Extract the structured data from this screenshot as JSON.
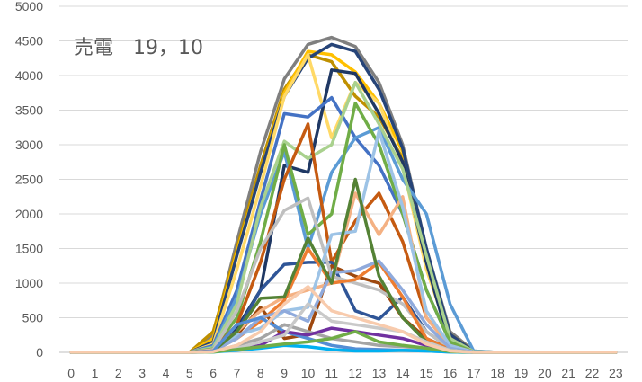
{
  "chart_data": {
    "type": "line",
    "title": "売電　19，10",
    "xlabel": "",
    "ylabel": "",
    "x": [
      0,
      1,
      2,
      3,
      4,
      5,
      6,
      7,
      8,
      9,
      10,
      11,
      12,
      13,
      14,
      15,
      16,
      17,
      18,
      19,
      20,
      21,
      22,
      23
    ],
    "ylim": [
      0,
      5000
    ],
    "yticks": [
      0,
      500,
      1000,
      1500,
      2000,
      2500,
      3000,
      3500,
      4000,
      4500,
      5000
    ],
    "grid": "horizontal",
    "legend": "none",
    "series": [
      {
        "color": "#7f7f7f",
        "values": [
          0,
          0,
          0,
          0,
          0,
          0,
          250,
          1600,
          2900,
          3950,
          4450,
          4550,
          4420,
          3900,
          3000,
          1500,
          300,
          20,
          0,
          0,
          0,
          0,
          0,
          0
        ]
      },
      {
        "color": "#bf9000",
        "values": [
          0,
          0,
          0,
          0,
          0,
          0,
          300,
          1500,
          2700,
          3800,
          4300,
          4200,
          3700,
          3400,
          2800,
          1400,
          260,
          15,
          0,
          0,
          0,
          0,
          0,
          0
        ]
      },
      {
        "color": "#ffc000",
        "values": [
          0,
          0,
          0,
          0,
          0,
          0,
          200,
          1450,
          2600,
          3750,
          4350,
          4300,
          4050,
          3600,
          2900,
          1450,
          250,
          10,
          0,
          0,
          0,
          0,
          0,
          0
        ]
      },
      {
        "color": "#264478",
        "values": [
          0,
          0,
          0,
          0,
          0,
          0,
          150,
          1400,
          2600,
          3700,
          4250,
          4450,
          4350,
          3800,
          2950,
          1500,
          260,
          10,
          0,
          0,
          0,
          0,
          0,
          0
        ]
      },
      {
        "color": "#ffd966",
        "values": [
          0,
          0,
          0,
          0,
          0,
          0,
          120,
          1200,
          2400,
          3700,
          4300,
          3100,
          3900,
          3600,
          2700,
          1200,
          200,
          10,
          0,
          0,
          0,
          0,
          0,
          0
        ]
      },
      {
        "color": "#1f3864",
        "values": [
          0,
          0,
          0,
          0,
          0,
          0,
          60,
          350,
          900,
          2700,
          2600,
          4080,
          4030,
          3450,
          2750,
          1300,
          100,
          5,
          0,
          0,
          0,
          0,
          0,
          0
        ]
      },
      {
        "color": "#4472c4",
        "values": [
          0,
          0,
          0,
          0,
          0,
          0,
          100,
          900,
          2200,
          3450,
          3400,
          3680,
          3100,
          2700,
          2000,
          900,
          150,
          5,
          0,
          0,
          0,
          0,
          0,
          0
        ]
      },
      {
        "color": "#5b9bd5",
        "values": [
          0,
          0,
          0,
          0,
          0,
          0,
          80,
          800,
          2000,
          2900,
          1500,
          2600,
          3100,
          3250,
          2500,
          2000,
          700,
          20,
          0,
          0,
          0,
          0,
          0,
          0
        ]
      },
      {
        "color": "#a9d18e",
        "values": [
          0,
          0,
          0,
          0,
          0,
          0,
          70,
          700,
          2100,
          3050,
          2800,
          3000,
          3900,
          3300,
          2650,
          1400,
          200,
          10,
          0,
          0,
          0,
          0,
          0,
          0
        ]
      },
      {
        "color": "#70ad47",
        "values": [
          0,
          0,
          0,
          0,
          0,
          0,
          50,
          500,
          1600,
          3000,
          1700,
          2000,
          3600,
          3000,
          2000,
          900,
          150,
          5,
          0,
          0,
          0,
          0,
          0,
          0
        ]
      },
      {
        "color": "#c55a11",
        "values": [
          0,
          0,
          0,
          0,
          0,
          0,
          40,
          400,
          1300,
          2500,
          3300,
          1300,
          1900,
          2300,
          1600,
          500,
          100,
          5,
          0,
          0,
          0,
          0,
          0,
          0
        ]
      },
      {
        "color": "#2f5597",
        "values": [
          0,
          0,
          0,
          0,
          0,
          0,
          30,
          300,
          900,
          1270,
          1300,
          1300,
          600,
          480,
          800,
          300,
          60,
          5,
          0,
          0,
          0,
          0,
          0,
          0
        ]
      },
      {
        "color": "#9e480e",
        "values": [
          0,
          0,
          0,
          0,
          0,
          0,
          20,
          250,
          650,
          200,
          260,
          1250,
          1100,
          1000,
          500,
          200,
          50,
          5,
          0,
          0,
          0,
          0,
          0,
          0
        ]
      },
      {
        "color": "#bfbfbf",
        "values": [
          0,
          0,
          0,
          0,
          0,
          0,
          40,
          600,
          1500,
          2050,
          2230,
          1100,
          1000,
          900,
          700,
          300,
          60,
          5,
          0,
          0,
          0,
          0,
          0,
          0
        ]
      },
      {
        "color": "#f4b183",
        "values": [
          0,
          0,
          0,
          0,
          0,
          0,
          30,
          300,
          600,
          800,
          900,
          1000,
          2300,
          1700,
          2250,
          500,
          80,
          5,
          0,
          0,
          0,
          0,
          0,
          0
        ]
      },
      {
        "color": "#ed7d31",
        "values": [
          0,
          0,
          0,
          0,
          0,
          0,
          20,
          200,
          450,
          750,
          1500,
          1000,
          1050,
          1300,
          800,
          200,
          40,
          0,
          0,
          0,
          0,
          0,
          0,
          0
        ]
      },
      {
        "color": "#9dc3e6",
        "values": [
          0,
          0,
          0,
          0,
          0,
          0,
          20,
          250,
          350,
          600,
          650,
          1700,
          1750,
          3200,
          2100,
          600,
          100,
          5,
          0,
          0,
          0,
          0,
          0,
          0
        ]
      },
      {
        "color": "#8faadc",
        "values": [
          0,
          0,
          0,
          0,
          0,
          0,
          20,
          200,
          500,
          600,
          450,
          1150,
          1180,
          1320,
          900,
          400,
          60,
          0,
          0,
          0,
          0,
          0,
          0,
          0
        ]
      },
      {
        "color": "#548235",
        "values": [
          0,
          0,
          0,
          0,
          0,
          0,
          20,
          300,
          780,
          800,
          1650,
          1000,
          2500,
          1100,
          500,
          150,
          30,
          0,
          0,
          0,
          0,
          0,
          0,
          0
        ]
      },
      {
        "color": "#a5a5a5",
        "values": [
          0,
          0,
          0,
          0,
          0,
          0,
          10,
          100,
          200,
          400,
          300,
          200,
          150,
          100,
          80,
          60,
          20,
          0,
          0,
          0,
          0,
          0,
          0,
          0
        ]
      },
      {
        "color": "#548dd4",
        "values": [
          0,
          0,
          0,
          0,
          0,
          0,
          20,
          400,
          500,
          300,
          200,
          100,
          50,
          40,
          30,
          20,
          5,
          0,
          0,
          0,
          0,
          0,
          0,
          0
        ]
      },
      {
        "color": "#7030a0",
        "values": [
          0,
          0,
          0,
          0,
          0,
          0,
          10,
          50,
          100,
          300,
          250,
          350,
          300,
          250,
          200,
          100,
          20,
          0,
          0,
          0,
          0,
          0,
          0,
          0
        ]
      },
      {
        "color": "#c9c9c9",
        "values": [
          0,
          0,
          0,
          0,
          0,
          0,
          5,
          60,
          150,
          250,
          700,
          450,
          400,
          350,
          300,
          150,
          30,
          0,
          0,
          0,
          0,
          0,
          0,
          0
        ]
      },
      {
        "color": "#00b0f0",
        "values": [
          0,
          0,
          0,
          0,
          0,
          0,
          5,
          30,
          60,
          100,
          80,
          40,
          20,
          20,
          30,
          20,
          5,
          0,
          0,
          0,
          0,
          0,
          0,
          0
        ]
      },
      {
        "color": "#70ad47",
        "values": [
          0,
          0,
          0,
          0,
          0,
          0,
          5,
          40,
          80,
          120,
          150,
          200,
          300,
          150,
          100,
          60,
          10,
          0,
          0,
          0,
          0,
          0,
          0,
          0
        ]
      },
      {
        "color": "#f8cbad",
        "values": [
          0,
          0,
          0,
          0,
          0,
          0,
          10,
          100,
          300,
          700,
          950,
          600,
          500,
          400,
          300,
          120,
          20,
          0,
          0,
          0,
          0,
          0,
          0,
          0
        ]
      }
    ]
  }
}
